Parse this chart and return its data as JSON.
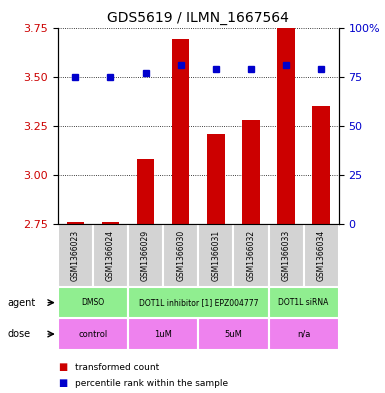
{
  "title": "GDS5619 / ILMN_1667564",
  "samples": [
    "GSM1366023",
    "GSM1366024",
    "GSM1366029",
    "GSM1366030",
    "GSM1366031",
    "GSM1366032",
    "GSM1366033",
    "GSM1366034"
  ],
  "bar_values": [
    2.76,
    2.76,
    3.08,
    3.69,
    3.21,
    3.28,
    3.86,
    3.35
  ],
  "dot_values": [
    3.5,
    3.5,
    3.52,
    3.56,
    3.54,
    3.54,
    3.56,
    3.54
  ],
  "bar_color": "#cc0000",
  "dot_color": "#0000cc",
  "ylim_left": [
    2.75,
    3.75
  ],
  "ylim_right": [
    0,
    100
  ],
  "yticks_left": [
    2.75,
    3.0,
    3.25,
    3.5,
    3.75
  ],
  "yticks_right": [
    0,
    25,
    50,
    75,
    100
  ],
  "ytick_labels_right": [
    "0",
    "25",
    "50",
    "75",
    "100%"
  ],
  "bar_bottom": 2.75,
  "sample_bg": "#d3d3d3",
  "agent_bg": "#90ee90",
  "dose_bg": "#ee82ee",
  "white": "#ffffff",
  "legend_items": [
    {
      "label": "transformed count",
      "color": "#cc0000"
    },
    {
      "label": "percentile rank within the sample",
      "color": "#0000cc"
    }
  ],
  "agent_groups": [
    {
      "label": "DMSO",
      "start": 0,
      "end": 1
    },
    {
      "label": "DOT1L inhibitor [1] EPZ004777",
      "start": 2,
      "end": 5
    },
    {
      "label": "DOT1L siRNA",
      "start": 6,
      "end": 7
    }
  ],
  "dose_groups": [
    {
      "label": "control",
      "start": 0,
      "end": 1
    },
    {
      "label": "1uM",
      "start": 2,
      "end": 3
    },
    {
      "label": "5uM",
      "start": 4,
      "end": 5
    },
    {
      "label": "n/a",
      "start": 6,
      "end": 7
    }
  ]
}
